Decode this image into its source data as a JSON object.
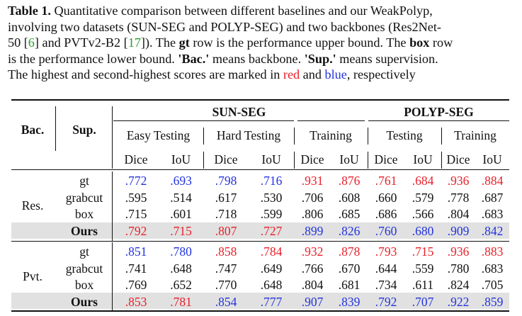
{
  "caption": {
    "label": "Table 1.",
    "t1": " Quantitative comparison between different baselines and our WeakPolyp,",
    "t2": "involving two datasets (SUN-SEG and POLYP-SEG) and two backbones (Res2Net-",
    "t3a": "50 [",
    "cite1": "6",
    "t3b": "] and PVTv2-B2 [",
    "cite2": "17",
    "t3c": "]). The ",
    "gt": "gt",
    "t3d": " row is the performance upper bound. The ",
    "box": "box",
    "t3e": " row",
    "t4a": "is the performance lower bound. ",
    "bac": "'Bac.'",
    "t4b": " means backbone. ",
    "sup": "'Sup.'",
    "t4c": " means supervision.",
    "t5a": "The highest and second-highest scores are marked in ",
    "red_word": "red",
    "t5b": " and ",
    "blue_word": "blue",
    "t5c": ", respectively"
  },
  "table": {
    "col_bac": "Bac.",
    "col_sup": "Sup.",
    "dataset1": "SUN-SEG",
    "dataset2": "POLYP-SEG",
    "sub1": "Easy Testing",
    "sub2": "Hard Testing",
    "sub3": "Training",
    "sub4": "Testing",
    "sub5": "Training",
    "metrics": [
      "Dice",
      "IoU",
      "Dice",
      "IoU",
      "Dice",
      "IoU",
      "Dice",
      "IoU",
      "Dice",
      "IoU"
    ],
    "groups": [
      {
        "backbone": "Res.",
        "rows": [
          {
            "sup": "gt",
            "vals": [
              ".772",
              ".693",
              ".798",
              ".716",
              ".931",
              ".876",
              ".761",
              ".684",
              ".936",
              ".884"
            ],
            "colors": [
              "b",
              "b",
              "b",
              "b",
              "r",
              "r",
              "r",
              "r",
              "r",
              "r"
            ]
          },
          {
            "sup": "grabcut",
            "vals": [
              ".595",
              ".514",
              ".617",
              ".530",
              ".706",
              ".608",
              ".660",
              ".579",
              ".778",
              ".687"
            ],
            "colors": [
              "k",
              "k",
              "k",
              "k",
              "k",
              "k",
              "k",
              "k",
              "k",
              "k"
            ]
          },
          {
            "sup": "box",
            "vals": [
              ".715",
              ".601",
              ".718",
              ".599",
              ".806",
              ".685",
              ".686",
              ".566",
              ".804",
              ".683"
            ],
            "colors": [
              "k",
              "k",
              "k",
              "k",
              "k",
              "k",
              "k",
              "k",
              "k",
              "k"
            ]
          },
          {
            "sup": "Ours",
            "vals": [
              ".792",
              ".715",
              ".807",
              ".727",
              ".899",
              ".826",
              ".760",
              ".680",
              ".909",
              ".842"
            ],
            "colors": [
              "r",
              "r",
              "r",
              "r",
              "b",
              "b",
              "b",
              "b",
              "b",
              "b"
            ]
          }
        ]
      },
      {
        "backbone": "Pvt.",
        "rows": [
          {
            "sup": "gt",
            "vals": [
              ".851",
              ".780",
              ".858",
              ".784",
              ".932",
              ".878",
              ".793",
              ".715",
              ".936",
              ".883"
            ],
            "colors": [
              "b",
              "b",
              "r",
              "r",
              "r",
              "r",
              "r",
              "r",
              "r",
              "r"
            ]
          },
          {
            "sup": "grabcut",
            "vals": [
              ".741",
              ".648",
              ".747",
              ".649",
              ".766",
              ".670",
              ".644",
              ".559",
              ".780",
              ".683"
            ],
            "colors": [
              "k",
              "k",
              "k",
              "k",
              "k",
              "k",
              "k",
              "k",
              "k",
              "k"
            ]
          },
          {
            "sup": "box",
            "vals": [
              ".769",
              ".652",
              ".770",
              ".648",
              ".804",
              ".681",
              ".734",
              ".611",
              ".824",
              ".705"
            ],
            "colors": [
              "k",
              "k",
              "k",
              "k",
              "k",
              "k",
              "k",
              "k",
              "k",
              "k"
            ]
          },
          {
            "sup": "Ours",
            "vals": [
              ".853",
              ".781",
              ".854",
              ".777",
              ".907",
              ".839",
              ".792",
              ".707",
              ".922",
              ".859"
            ],
            "colors": [
              "r",
              "r",
              "b",
              "b",
              "b",
              "b",
              "b",
              "b",
              "b",
              "b"
            ]
          }
        ]
      }
    ],
    "colors": {
      "r": "#e8202a",
      "b": "#2233dd",
      "k": "#111111"
    }
  }
}
